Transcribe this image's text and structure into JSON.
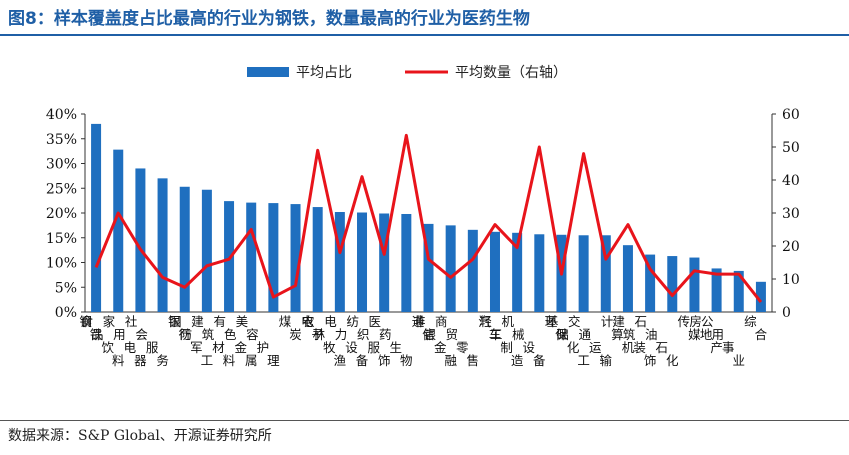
{
  "title": "图8：样本覆盖度占比最高的行业为钢铁，数量最高的行业为医药生物",
  "source": "数据来源：S&P Global、开源证券研究所",
  "colors": {
    "bar": "#1f6fbf",
    "line": "#e8141b",
    "title": "#1f5fa6"
  },
  "chart_data": {
    "type": "bar",
    "categories": [
      "钢铁",
      "食品饮料",
      "家用电器",
      "社会服务",
      "银行",
      "国防军工",
      "建筑材料",
      "有色金属",
      "美容护理",
      "煤炭",
      "电子",
      "农林牧渔",
      "电力设备",
      "纺织服饰",
      "医药生物",
      "通信",
      "非银金融",
      "商贸零售",
      "汽车",
      "轻工制造",
      "机械设备",
      "环保",
      "基础化工",
      "交通运输",
      "计算机",
      "建筑装饰",
      "石油石化",
      "传媒",
      "房地产",
      "公用事业",
      "综合"
    ],
    "series": [
      {
        "name": "平均占比",
        "type": "bar",
        "axis": "left",
        "values": [
          38.0,
          32.8,
          29.0,
          27.0,
          25.3,
          24.7,
          22.4,
          22.1,
          22.0,
          21.8,
          21.2,
          20.2,
          20.1,
          19.9,
          19.8,
          17.8,
          17.5,
          16.6,
          16.2,
          16.0,
          15.7,
          15.6,
          15.5,
          15.5,
          13.5,
          11.6,
          11.3,
          11.0,
          8.8,
          8.3,
          6.1
        ]
      },
      {
        "name": "平均数量（右轴）",
        "type": "line",
        "axis": "right",
        "values": [
          13.5,
          30.0,
          19.0,
          10.5,
          7.5,
          14.0,
          16.0,
          25.0,
          4.5,
          8.0,
          49.0,
          18.0,
          41.0,
          17.5,
          53.5,
          16.0,
          10.5,
          16.0,
          26.5,
          19.5,
          50.0,
          11.5,
          48.0,
          16.0,
          26.5,
          13.0,
          5.0,
          12.5,
          11.5,
          11.5,
          3.0
        ]
      }
    ],
    "yleft": {
      "ticks": [
        "0%",
        "5%",
        "10%",
        "15%",
        "20%",
        "25%",
        "30%",
        "35%",
        "40%"
      ],
      "lim": [
        0,
        40
      ]
    },
    "yright": {
      "ticks": [
        "0",
        "10",
        "20",
        "30",
        "40",
        "50",
        "60"
      ],
      "lim": [
        0,
        60
      ]
    },
    "legend": {
      "placement": "top-center",
      "bar_label": "平均占比",
      "line_label": "平均数量（右轴）"
    },
    "grid": false
  }
}
